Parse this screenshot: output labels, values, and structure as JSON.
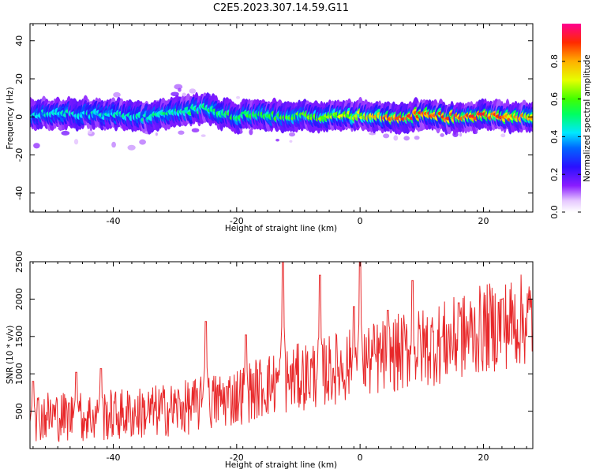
{
  "figure": {
    "title": "C2E5.2023.307.14.59.G11"
  },
  "chart_data": [
    {
      "type": "heatmap",
      "xlabel": "Height of straight line (km)",
      "ylabel": "Frequency (Hz)",
      "xlim": [
        -53.5,
        28
      ],
      "ylim": [
        -50,
        49
      ],
      "x_ticks": [
        "-40",
        "-20",
        "0",
        "20"
      ],
      "y_ticks": [
        "40",
        "20",
        "0",
        "-20",
        "-40"
      ],
      "x_tick_values": [
        -40,
        -20,
        0,
        20
      ],
      "y_tick_values": [
        40,
        20,
        0,
        -20,
        -40
      ],
      "colorbar": {
        "label": "Normalized spectral amplitude",
        "range": [
          0.0,
          1.0
        ],
        "ticks": [
          "0.0",
          "0.2",
          "0.4",
          "0.6",
          "0.8"
        ],
        "tick_values": [
          0.0,
          0.2,
          0.4,
          0.6,
          0.8
        ],
        "colormap": "rainbow (white-purple-blue-cyan-green-yellow-orange-red-magenta)"
      },
      "ridge": {
        "description": "narrow band of high amplitude centered near 0 Hz across the full height range",
        "center_freq_points": [
          [
            -53,
            1
          ],
          [
            -45,
            2
          ],
          [
            -40,
            1
          ],
          [
            -35,
            0
          ],
          [
            -30,
            3
          ],
          [
            -25,
            4
          ],
          [
            -20,
            0
          ],
          [
            -15,
            1
          ],
          [
            -10,
            0
          ],
          [
            -5,
            0
          ],
          [
            0,
            1
          ],
          [
            5,
            -1
          ],
          [
            10,
            1
          ],
          [
            15,
            0
          ],
          [
            20,
            1
          ],
          [
            25,
            0
          ],
          [
            28,
            0
          ]
        ],
        "peak_amplitude_points": [
          [
            -53,
            0.45
          ],
          [
            -40,
            0.45
          ],
          [
            -30,
            0.5
          ],
          [
            -20,
            0.55
          ],
          [
            -10,
            0.6
          ],
          [
            0,
            0.7
          ],
          [
            5,
            0.85
          ],
          [
            10,
            0.9
          ],
          [
            15,
            0.85
          ],
          [
            20,
            0.9
          ],
          [
            28,
            0.8
          ]
        ]
      }
    },
    {
      "type": "line",
      "xlabel": "Height of straight line (km)",
      "ylabel": "SNR (10 * v/v)",
      "xlim": [
        -53.5,
        28
      ],
      "ylim": [
        0,
        2500
      ],
      "x_ticks": [
        "-40",
        "-20",
        "0",
        "20"
      ],
      "y_ticks": [
        "2500",
        "2000",
        "1500",
        "1000",
        "500"
      ],
      "x_tick_values": [
        -40,
        -20,
        0,
        20
      ],
      "y_tick_values": [
        2500,
        2000,
        1500,
        1000,
        500
      ],
      "series": [
        {
          "color": "#e8282a",
          "trend": [
            [
              -53.5,
              450
            ],
            [
              -45,
              420
            ],
            [
              -35,
              480
            ],
            [
              -28,
              550
            ],
            [
              -20,
              700
            ],
            [
              -15,
              850
            ],
            [
              -10,
              950
            ],
            [
              -5,
              1050
            ],
            [
              0,
              1150
            ],
            [
              5,
              1250
            ],
            [
              10,
              1350
            ],
            [
              15,
              1450
            ],
            [
              20,
              1600
            ],
            [
              28,
              1750
            ]
          ],
          "spikes": [
            [
              -53,
              900
            ],
            [
              -46,
              1020
            ],
            [
              -42,
              1070
            ],
            [
              -25,
              1700
            ],
            [
              -18.5,
              1520
            ],
            [
              -12.5,
              2550
            ],
            [
              -6.5,
              2320
            ],
            [
              -1,
              1900
            ],
            [
              0,
              2600
            ],
            [
              4.5,
              1850
            ],
            [
              8.5,
              2250
            ],
            [
              16,
              1950
            ],
            [
              23,
              2000
            ]
          ]
        }
      ]
    }
  ]
}
